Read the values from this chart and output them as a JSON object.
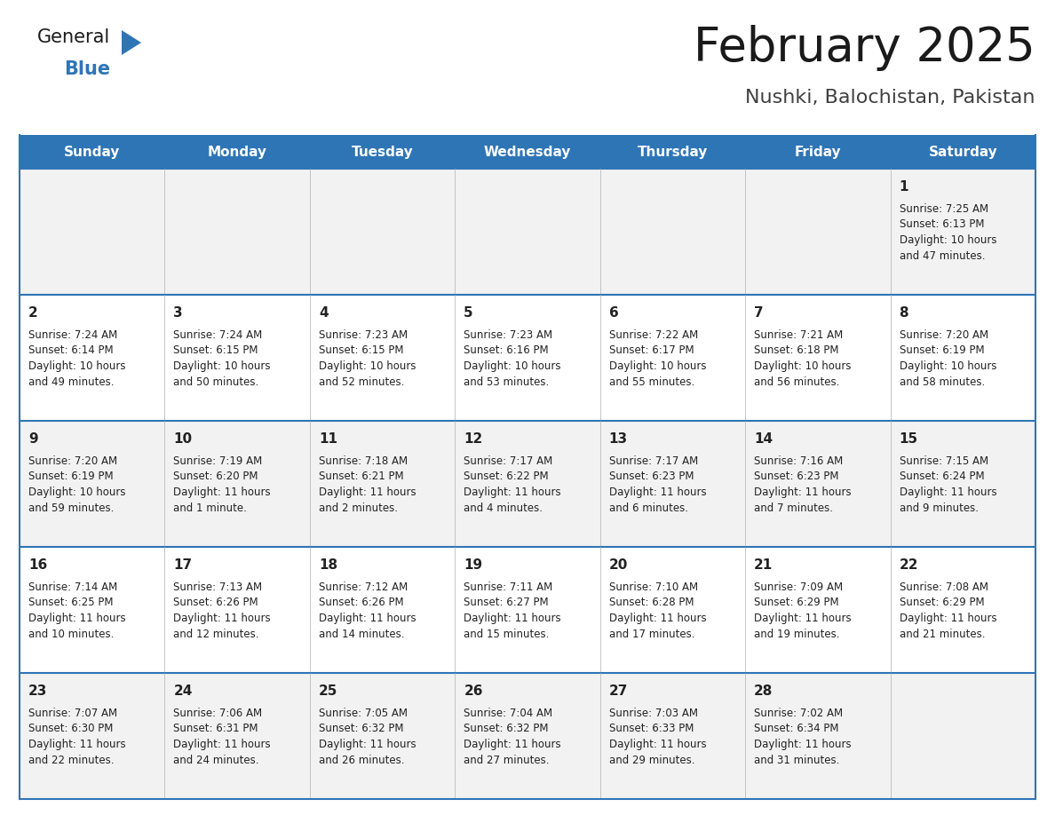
{
  "title": "February 2025",
  "subtitle": "Nushki, Balochistan, Pakistan",
  "header_bg": "#2E75B6",
  "header_text_color": "#FFFFFF",
  "row_bg1": "#F2F2F2",
  "row_bg2": "#FFFFFF",
  "border_color": "#2E75B6",
  "days_of_week": [
    "Sunday",
    "Monday",
    "Tuesday",
    "Wednesday",
    "Thursday",
    "Friday",
    "Saturday"
  ],
  "title_color": "#1a1a1a",
  "subtitle_color": "#404040",
  "cell_text_color": "#222222",
  "calendar_data": [
    [
      null,
      null,
      null,
      null,
      null,
      null,
      {
        "day": 1,
        "sunrise": "7:25 AM",
        "sunset": "6:13 PM",
        "daylight_line1": "Daylight: 10 hours",
        "daylight_line2": "and 47 minutes."
      }
    ],
    [
      {
        "day": 2,
        "sunrise": "7:24 AM",
        "sunset": "6:14 PM",
        "daylight_line1": "Daylight: 10 hours",
        "daylight_line2": "and 49 minutes."
      },
      {
        "day": 3,
        "sunrise": "7:24 AM",
        "sunset": "6:15 PM",
        "daylight_line1": "Daylight: 10 hours",
        "daylight_line2": "and 50 minutes."
      },
      {
        "day": 4,
        "sunrise": "7:23 AM",
        "sunset": "6:15 PM",
        "daylight_line1": "Daylight: 10 hours",
        "daylight_line2": "and 52 minutes."
      },
      {
        "day": 5,
        "sunrise": "7:23 AM",
        "sunset": "6:16 PM",
        "daylight_line1": "Daylight: 10 hours",
        "daylight_line2": "and 53 minutes."
      },
      {
        "day": 6,
        "sunrise": "7:22 AM",
        "sunset": "6:17 PM",
        "daylight_line1": "Daylight: 10 hours",
        "daylight_line2": "and 55 minutes."
      },
      {
        "day": 7,
        "sunrise": "7:21 AM",
        "sunset": "6:18 PM",
        "daylight_line1": "Daylight: 10 hours",
        "daylight_line2": "and 56 minutes."
      },
      {
        "day": 8,
        "sunrise": "7:20 AM",
        "sunset": "6:19 PM",
        "daylight_line1": "Daylight: 10 hours",
        "daylight_line2": "and 58 minutes."
      }
    ],
    [
      {
        "day": 9,
        "sunrise": "7:20 AM",
        "sunset": "6:19 PM",
        "daylight_line1": "Daylight: 10 hours",
        "daylight_line2": "and 59 minutes."
      },
      {
        "day": 10,
        "sunrise": "7:19 AM",
        "sunset": "6:20 PM",
        "daylight_line1": "Daylight: 11 hours",
        "daylight_line2": "and 1 minute."
      },
      {
        "day": 11,
        "sunrise": "7:18 AM",
        "sunset": "6:21 PM",
        "daylight_line1": "Daylight: 11 hours",
        "daylight_line2": "and 2 minutes."
      },
      {
        "day": 12,
        "sunrise": "7:17 AM",
        "sunset": "6:22 PM",
        "daylight_line1": "Daylight: 11 hours",
        "daylight_line2": "and 4 minutes."
      },
      {
        "day": 13,
        "sunrise": "7:17 AM",
        "sunset": "6:23 PM",
        "daylight_line1": "Daylight: 11 hours",
        "daylight_line2": "and 6 minutes."
      },
      {
        "day": 14,
        "sunrise": "7:16 AM",
        "sunset": "6:23 PM",
        "daylight_line1": "Daylight: 11 hours",
        "daylight_line2": "and 7 minutes."
      },
      {
        "day": 15,
        "sunrise": "7:15 AM",
        "sunset": "6:24 PM",
        "daylight_line1": "Daylight: 11 hours",
        "daylight_line2": "and 9 minutes."
      }
    ],
    [
      {
        "day": 16,
        "sunrise": "7:14 AM",
        "sunset": "6:25 PM",
        "daylight_line1": "Daylight: 11 hours",
        "daylight_line2": "and 10 minutes."
      },
      {
        "day": 17,
        "sunrise": "7:13 AM",
        "sunset": "6:26 PM",
        "daylight_line1": "Daylight: 11 hours",
        "daylight_line2": "and 12 minutes."
      },
      {
        "day": 18,
        "sunrise": "7:12 AM",
        "sunset": "6:26 PM",
        "daylight_line1": "Daylight: 11 hours",
        "daylight_line2": "and 14 minutes."
      },
      {
        "day": 19,
        "sunrise": "7:11 AM",
        "sunset": "6:27 PM",
        "daylight_line1": "Daylight: 11 hours",
        "daylight_line2": "and 15 minutes."
      },
      {
        "day": 20,
        "sunrise": "7:10 AM",
        "sunset": "6:28 PM",
        "daylight_line1": "Daylight: 11 hours",
        "daylight_line2": "and 17 minutes."
      },
      {
        "day": 21,
        "sunrise": "7:09 AM",
        "sunset": "6:29 PM",
        "daylight_line1": "Daylight: 11 hours",
        "daylight_line2": "and 19 minutes."
      },
      {
        "day": 22,
        "sunrise": "7:08 AM",
        "sunset": "6:29 PM",
        "daylight_line1": "Daylight: 11 hours",
        "daylight_line2": "and 21 minutes."
      }
    ],
    [
      {
        "day": 23,
        "sunrise": "7:07 AM",
        "sunset": "6:30 PM",
        "daylight_line1": "Daylight: 11 hours",
        "daylight_line2": "and 22 minutes."
      },
      {
        "day": 24,
        "sunrise": "7:06 AM",
        "sunset": "6:31 PM",
        "daylight_line1": "Daylight: 11 hours",
        "daylight_line2": "and 24 minutes."
      },
      {
        "day": 25,
        "sunrise": "7:05 AM",
        "sunset": "6:32 PM",
        "daylight_line1": "Daylight: 11 hours",
        "daylight_line2": "and 26 minutes."
      },
      {
        "day": 26,
        "sunrise": "7:04 AM",
        "sunset": "6:32 PM",
        "daylight_line1": "Daylight: 11 hours",
        "daylight_line2": "and 27 minutes."
      },
      {
        "day": 27,
        "sunrise": "7:03 AM",
        "sunset": "6:33 PM",
        "daylight_line1": "Daylight: 11 hours",
        "daylight_line2": "and 29 minutes."
      },
      {
        "day": 28,
        "sunrise": "7:02 AM",
        "sunset": "6:34 PM",
        "daylight_line1": "Daylight: 11 hours",
        "daylight_line2": "and 31 minutes."
      },
      null
    ]
  ],
  "logo_text1": "General",
  "logo_text2": "Blue",
  "logo_color1": "#1a1a1a",
  "logo_color2": "#2E75B6",
  "logo_triangle_color": "#2E75B6"
}
